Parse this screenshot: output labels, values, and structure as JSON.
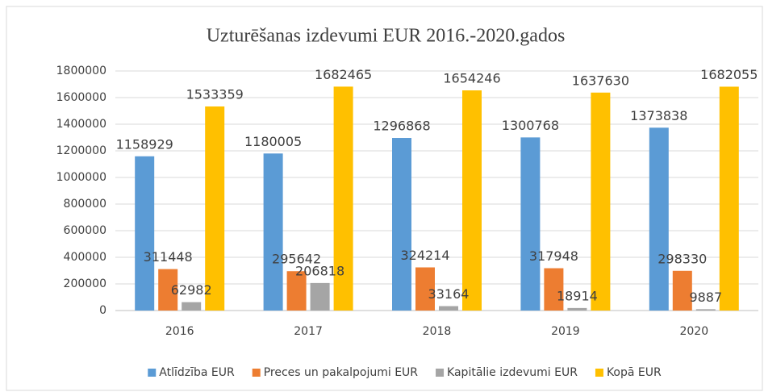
{
  "chart_data": {
    "type": "bar",
    "title": "Uzturēšanas izdevumi EUR 2016.-2020.gados",
    "categories": [
      "2016",
      "2017",
      "2018",
      "2019",
      "2020"
    ],
    "series": [
      {
        "name": "Atlīdzība EUR",
        "color": "#5b9bd5",
        "values": [
          1158929,
          1180005,
          1296868,
          1300768,
          1373838
        ]
      },
      {
        "name": "Preces un pakalpojumi EUR",
        "color": "#ed7d31",
        "values": [
          311448,
          295642,
          324214,
          317948,
          298330
        ]
      },
      {
        "name": "Kapitālie izdevumi EUR",
        "color": "#a5a5a5",
        "values": [
          62982,
          206818,
          33164,
          18914,
          9887
        ]
      },
      {
        "name": "Kopā EUR",
        "color": "#ffc000",
        "values": [
          1533359,
          1682465,
          1654246,
          1637630,
          1682055
        ]
      }
    ],
    "ylim": [
      0,
      1800000
    ],
    "yticks": [
      0,
      200000,
      400000,
      600000,
      800000,
      1000000,
      1200000,
      1400000,
      1600000,
      1800000
    ],
    "grid": true,
    "legend": "bottom"
  }
}
